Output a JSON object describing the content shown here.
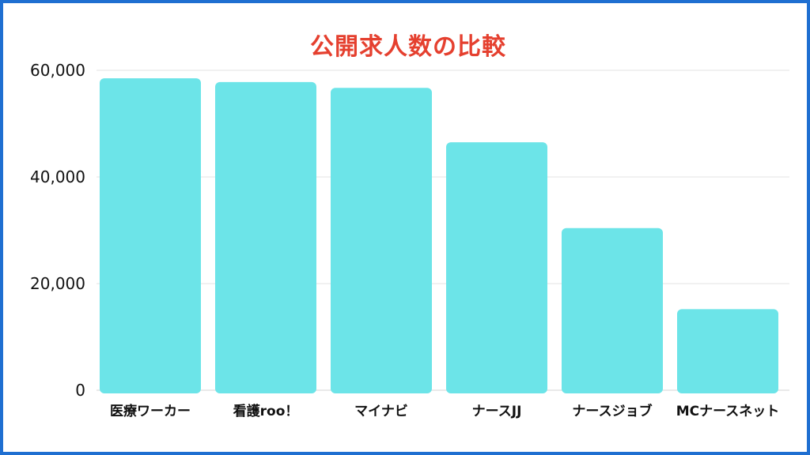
{
  "chart_data": {
    "type": "bar",
    "title": "公開求人数の比較",
    "categories": [
      "医療ワーカー",
      "看護roo！",
      "マイナビ",
      "ナースJJ",
      "ナースジョブ",
      "MCナースネット"
    ],
    "values": [
      58500,
      57800,
      56700,
      46500,
      30400,
      15200
    ],
    "yticks": [
      "0",
      "20,000",
      "40,000",
      "60,000"
    ],
    "ylim": [
      0,
      60000
    ],
    "grid": true,
    "colors": {
      "bar": "#6ce4e8",
      "title": "#e5402f",
      "frame": "#1f6fd1",
      "grid": "#e3e3e3"
    }
  }
}
